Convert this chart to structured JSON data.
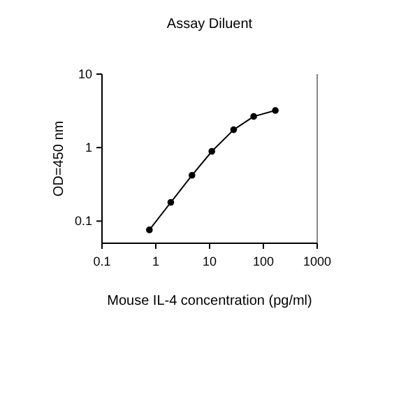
{
  "chart_data": {
    "type": "line",
    "title": "Assay Diluent",
    "xlabel": "Mouse IL-4 concentration (pg/ml)",
    "ylabel": "OD=450 nm",
    "log": "xy",
    "marker": "circle",
    "line_style": "solid",
    "x": [
      0.76,
      1.9,
      4.7,
      11,
      28,
      66,
      167
    ],
    "series": [
      {
        "color": "#000000",
        "values": [
          0.076,
          0.18,
          0.42,
          0.89,
          1.75,
          2.65,
          3.2
        ]
      }
    ],
    "xlim": [
      0.1,
      1000
    ],
    "xticks": [
      0.1,
      1,
      10,
      100,
      1000
    ],
    "ylim": [
      0.05,
      10
    ],
    "yticks": [
      0.1,
      1,
      10
    ],
    "grid": false
  }
}
